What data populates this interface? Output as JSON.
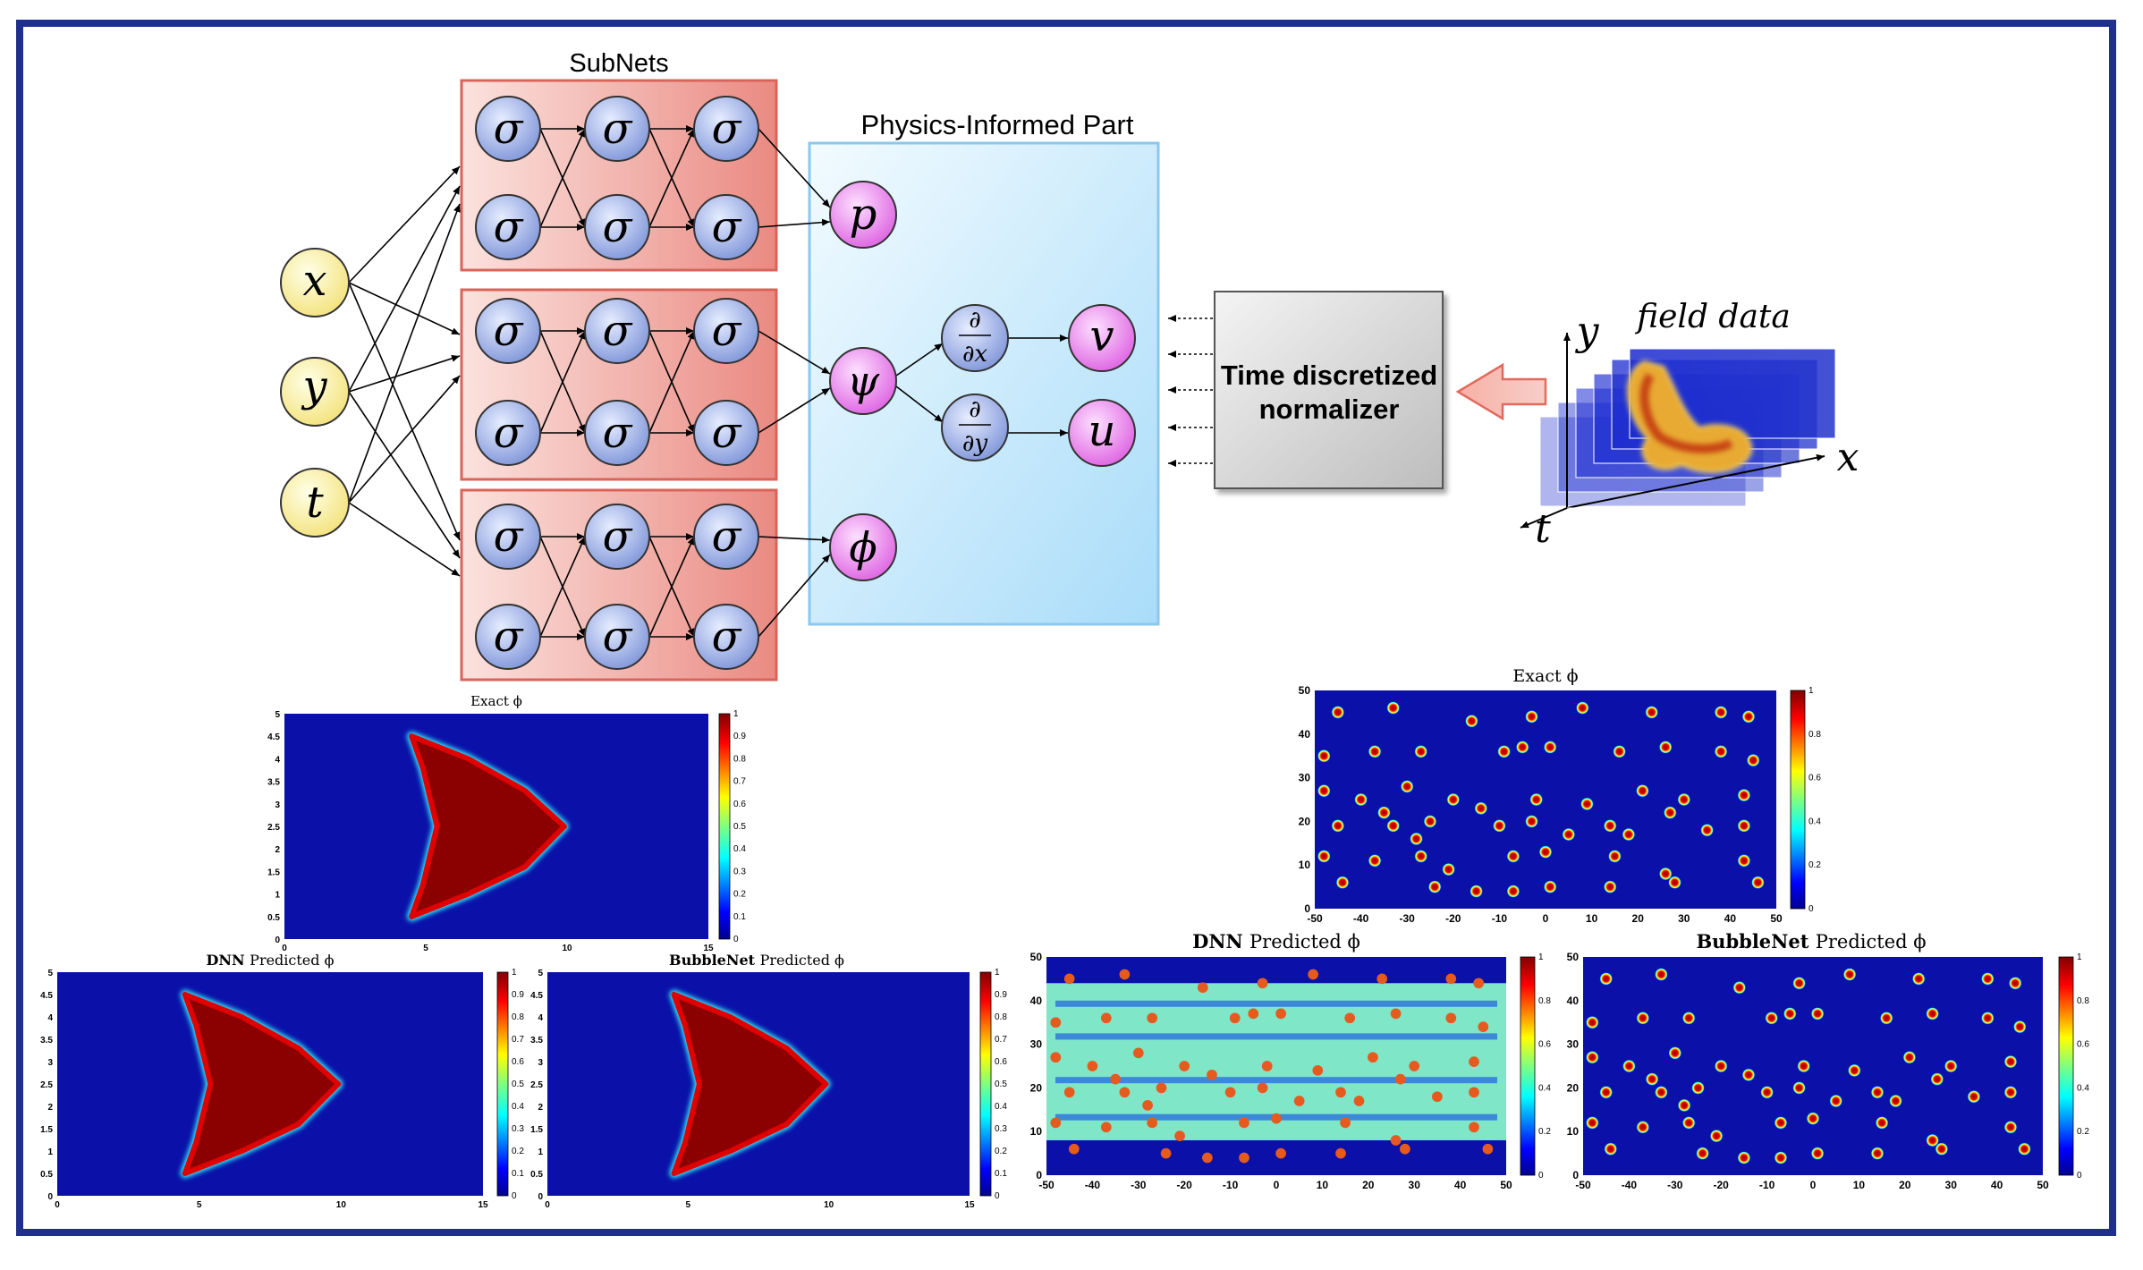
{
  "subnets_label": "SubNets",
  "physics_label": "Physics-Informed Part",
  "neuron_symbol": "σ",
  "inputs": [
    "x",
    "y",
    "t"
  ],
  "outputs": {
    "p": "p",
    "psi": "ψ",
    "phi": "ϕ",
    "v": "v",
    "u": "u"
  },
  "derivatives": {
    "dx_num": "∂",
    "dx_den": "∂x",
    "dy_num": "∂",
    "dy_den": "∂y"
  },
  "normalizer": {
    "line1": "Time discretized",
    "line2": "normalizer"
  },
  "field": {
    "label": "field data",
    "axis_x": "x",
    "axis_y": "y",
    "axis_t": "t"
  },
  "plots": {
    "single_exact_title": "Exact ϕ",
    "single_dnn_title": "DNN Predicted ϕ",
    "single_bubble_title": "BubbleNet Predicted ϕ",
    "multi_exact_title": "Exact ϕ",
    "multi_dnn_title": "DNN Predicted ϕ",
    "multi_bubble_title": "BubbleNet Predicted ϕ",
    "single_x_ticks": [
      "0",
      "5",
      "10",
      "15"
    ],
    "single_y_ticks": [
      "0",
      "0.5",
      "1",
      "1.5",
      "2",
      "2.5",
      "3",
      "3.5",
      "4",
      "4.5",
      "5"
    ],
    "single_cbar_ticks": [
      "0",
      "0.1",
      "0.2",
      "0.3",
      "0.4",
      "0.5",
      "0.6",
      "0.7",
      "0.8",
      "0.9",
      "1"
    ],
    "multi_x_ticks": [
      "-50",
      "-40",
      "-30",
      "-20",
      "-10",
      "0",
      "10",
      "20",
      "30",
      "40",
      "50"
    ],
    "multi_y_ticks": [
      "0",
      "10",
      "20",
      "30",
      "40",
      "50"
    ],
    "multi_cbar_ticks": [
      "0",
      "0.2",
      "0.4",
      "0.6",
      "0.8",
      "1"
    ]
  },
  "colors": {
    "frame": "#1f2f8f",
    "subnet_fill": "#f3b6b0",
    "subnet_border": "#d9645a",
    "neuron": "#9fb0e6",
    "input_node": "#fff7a8",
    "output_node": "#ee88f0",
    "physics_fill": "#cde9fb",
    "physics_border": "#8cc8ee",
    "plot_bg": "#0a10a8",
    "bubble": "#8b0000"
  }
}
